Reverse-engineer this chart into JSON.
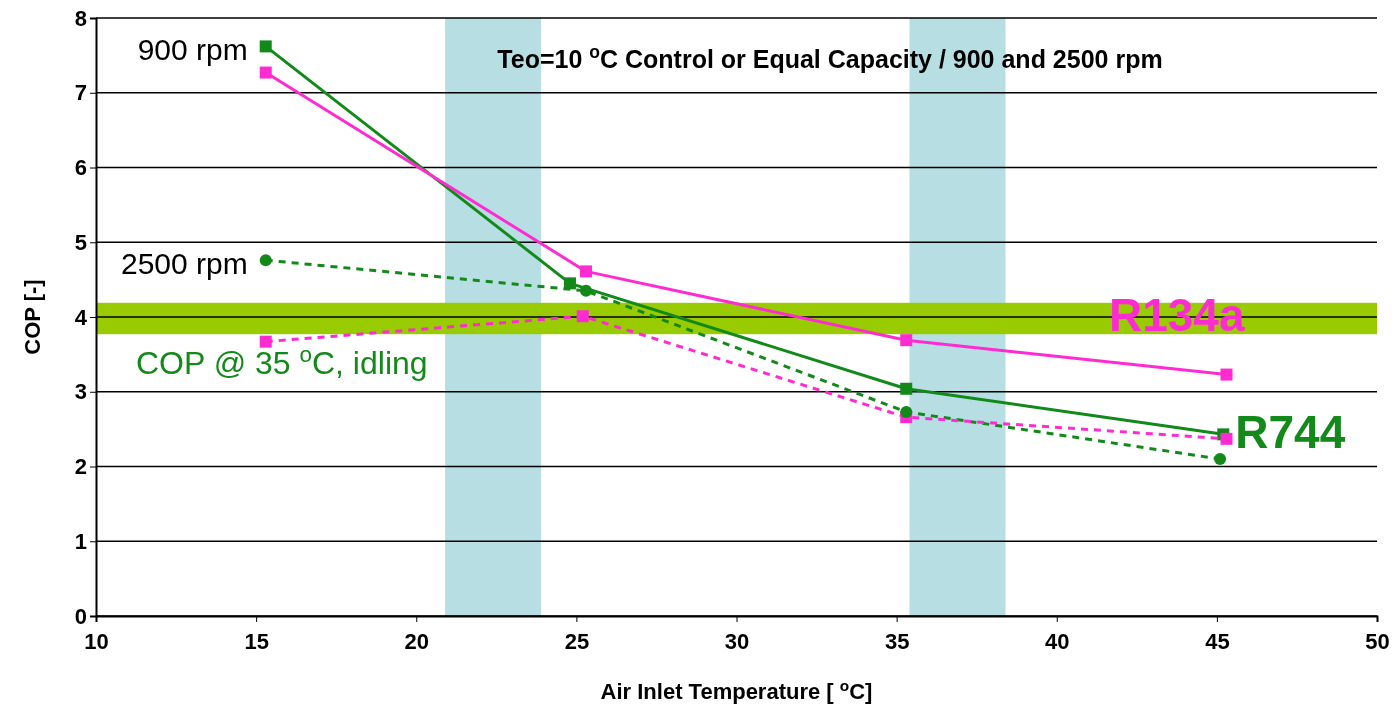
{
  "chart_data": {
    "type": "line",
    "title": "Teo=10 $^{o}$C Control or Equal Capacity / 900 and 2500 rpm",
    "xlabel": "Air Inlet Temperature [ $^{o}$C]",
    "ylabel": "COP [-]",
    "xlim": [
      10,
      50
    ],
    "xticks": [
      10,
      15,
      20,
      25,
      30,
      35,
      40,
      45,
      50
    ],
    "ylim": [
      0,
      8
    ],
    "yticks": [
      0,
      1,
      2,
      3,
      4,
      5,
      6,
      7,
      8
    ],
    "grid": "y",
    "series": [
      {
        "name": "R744",
        "color": "#13891a",
        "x": [
          15.3,
          24.8,
          35.3,
          45.2
        ],
        "values": [
          7.62,
          4.45,
          3.04,
          2.43
        ],
        "marker": "square",
        "line_style": "solid"
      },
      {
        "name": "R134a",
        "color": "#ff2bd2",
        "x": [
          15.3,
          25.3,
          35.3,
          45.3
        ],
        "values": [
          7.27,
          4.61,
          3.69,
          3.23
        ],
        "marker": "square",
        "line_style": "solid"
      },
      {
        "color": "#13891a",
        "x": [
          15.3,
          25.3,
          35.3,
          45.1
        ],
        "values": [
          4.76,
          4.35,
          2.73,
          2.1
        ],
        "marker": "circle",
        "line_style": "dashed"
      },
      {
        "color": "#ff2bd2",
        "x": [
          15.3,
          25.2,
          35.3,
          45.3
        ],
        "values": [
          3.67,
          4.01,
          2.66,
          2.37
        ],
        "marker": "square",
        "line_style": "dashed"
      }
    ],
    "bands": [
      {
        "axis": "x",
        "from": 20.9,
        "to": 23.9,
        "color": "#b7dfe3"
      },
      {
        "axis": "x",
        "from": 35.4,
        "to": 38.4,
        "color": "#b7dfe3"
      },
      {
        "axis": "y",
        "from": 3.77,
        "to": 4.19,
        "color": "#99cc00",
        "label": "COP @ 35 $^{o}$C, idling"
      }
    ],
    "annotations": [
      {
        "text": "900 rpm",
        "x": 15.3,
        "y": 7.62
      },
      {
        "text": "2500 rpm",
        "x": 15.3,
        "y": 4.76
      }
    ]
  }
}
